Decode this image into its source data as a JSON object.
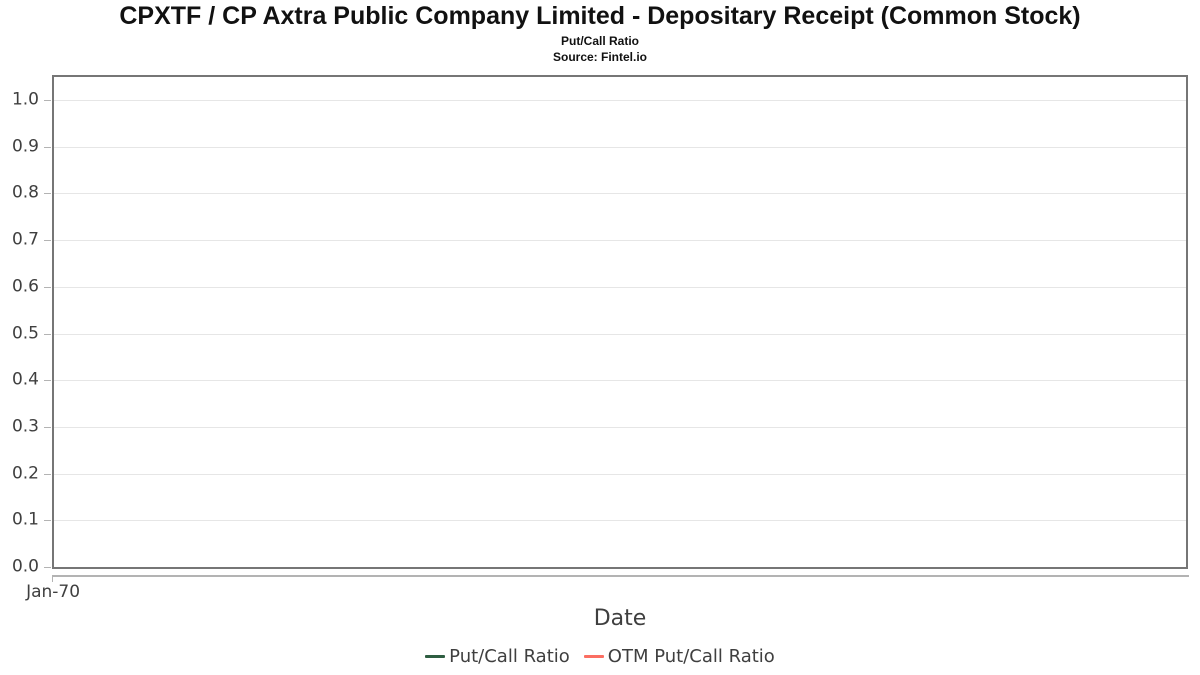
{
  "header": {
    "title": "CPXTF / CP Axtra Public Company Limited - Depositary Receipt (Common Stock)",
    "subtitle": "Put/Call Ratio",
    "source": "Source: Fintel.io"
  },
  "chart_data": {
    "type": "line",
    "title": "CPXTF / CP Axtra Public Company Limited - Depositary Receipt (Common Stock)",
    "subtitle": "Put/Call Ratio",
    "source": "Source: Fintel.io",
    "xlabel": "Date",
    "ylabel": "",
    "ylim": [
      0.0,
      1.05
    ],
    "grid": "horizontal",
    "legend_position": "bottom-center",
    "y_ticks": [
      0.0,
      0.1,
      0.2,
      0.3,
      0.4,
      0.5,
      0.6,
      0.7,
      0.8,
      0.9,
      1.0
    ],
    "y_tick_labels": [
      "0.0",
      "0.1",
      "0.2",
      "0.3",
      "0.4",
      "0.5",
      "0.6",
      "0.7",
      "0.8",
      "0.9",
      "1.0"
    ],
    "x_tick_labels": [
      "Jan-70"
    ],
    "series": [
      {
        "name": "Put/Call Ratio",
        "color": "#2e5e41",
        "x": [],
        "values": []
      },
      {
        "name": "OTM Put/Call Ratio",
        "color": "#fb6e62",
        "x": [],
        "values": []
      }
    ]
  },
  "colors": {
    "plot_border": "#767676",
    "gridline": "#e6e6e6",
    "axis_line": "#b3b3b3",
    "tick_label_text": "#3f3f3f",
    "title_text": "#111111"
  }
}
